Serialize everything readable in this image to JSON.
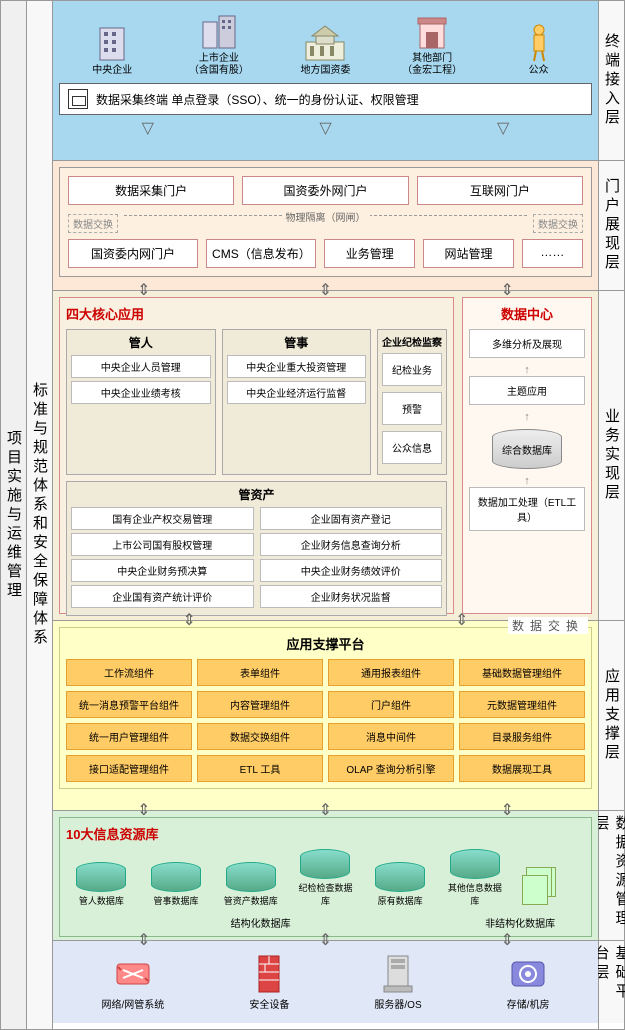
{
  "leftLabel1": "项目实施与运维管理",
  "leftLabel2": "标准与规范体系和安全保障体系",
  "rightLabels": [
    "终端接入层",
    "门户展现层",
    "业务实现层",
    "应用支撑层",
    "数据资源管理层",
    "基础平台层"
  ],
  "layer1": {
    "actors": [
      {
        "label": "中央企业",
        "sub": ""
      },
      {
        "label": "上市企业",
        "sub": "（含国有股）"
      },
      {
        "label": "地方国资委",
        "sub": ""
      },
      {
        "label": "其他部门",
        "sub": "（金宏工程）"
      },
      {
        "label": "公众",
        "sub": ""
      }
    ],
    "ssoText": "数据采集终端  单点登录（SSO）、统一的身份认证、权限管理"
  },
  "layer2": {
    "topPortals": [
      "数据采集门户",
      "国资委外网门户",
      "互联网门户"
    ],
    "divider": "物理隔离（网闸）",
    "exchange": "数据交换",
    "bottomLeft": "国资委内网门户",
    "bottomItems": [
      "CMS（信息发布）",
      "业务管理",
      "网站管理",
      "……"
    ]
  },
  "layer3": {
    "coreTitle": "四大核心应用",
    "guanren": {
      "title": "管人",
      "items": [
        "中央企业人员管理",
        "中央企业业绩考核"
      ]
    },
    "guanshi": {
      "title": "管事",
      "items": [
        "中央企业重大投资管理",
        "中央企业经济运行监督"
      ]
    },
    "guanzichan": {
      "title": "管资产",
      "left": [
        "国有企业产权交易管理",
        "上市公司国有股权管理",
        "中央企业财务预决算",
        "企业国有资产统计评价"
      ],
      "right": [
        "企业固有资产登记",
        "企业财务信息查询分析",
        "中央企业财务绩效评价",
        "企业财务状况监督"
      ]
    },
    "inspection": {
      "title": "企业纪检监察",
      "items": [
        "纪检业务",
        "预警",
        "公众信息"
      ]
    },
    "dataCenter": {
      "title": "数据中心",
      "items": [
        "多维分析及展现",
        "主题应用"
      ],
      "db": "综合数据库",
      "etl": "数据加工处理（ETL工具）"
    },
    "dataExchange": "数据交换"
  },
  "layer4": {
    "title": "应用支撑平台",
    "items": [
      "工作流组件",
      "表单组件",
      "通用报表组件",
      "基础数据管理组件",
      "统一消息预警平台组件",
      "内容管理组件",
      "门户组件",
      "元数据管理组件",
      "统一用户管理组件",
      "数据交换组件",
      "消息中间件",
      "目录服务组件",
      "接口适配管理组件",
      "ETL 工具",
      "OLAP 查询分析引擎",
      "数据展现工具"
    ]
  },
  "layer5": {
    "title": "10大信息资源库",
    "dbs": [
      "管人数据库",
      "管事数据库",
      "管资产数据库",
      "纪检检查数据库",
      "原有数据库",
      "其他信息数据库"
    ],
    "structLabel": "结构化数据库",
    "unstructLabel": "非结构化数据库"
  },
  "layer6": {
    "items": [
      "网络/网管系统",
      "安全设备",
      "服务器/OS",
      "存储/机房"
    ]
  },
  "colors": {
    "l1": "#a8d8f0",
    "l2": "#fde8d8",
    "l3": "#f5eed8",
    "l4": "#ffffc8",
    "l5": "#d8f0d8",
    "l6": "#e0e8f8",
    "redTitle": "#c00",
    "compOrange": "#ffcc66",
    "dbGreen": "#5a8"
  }
}
